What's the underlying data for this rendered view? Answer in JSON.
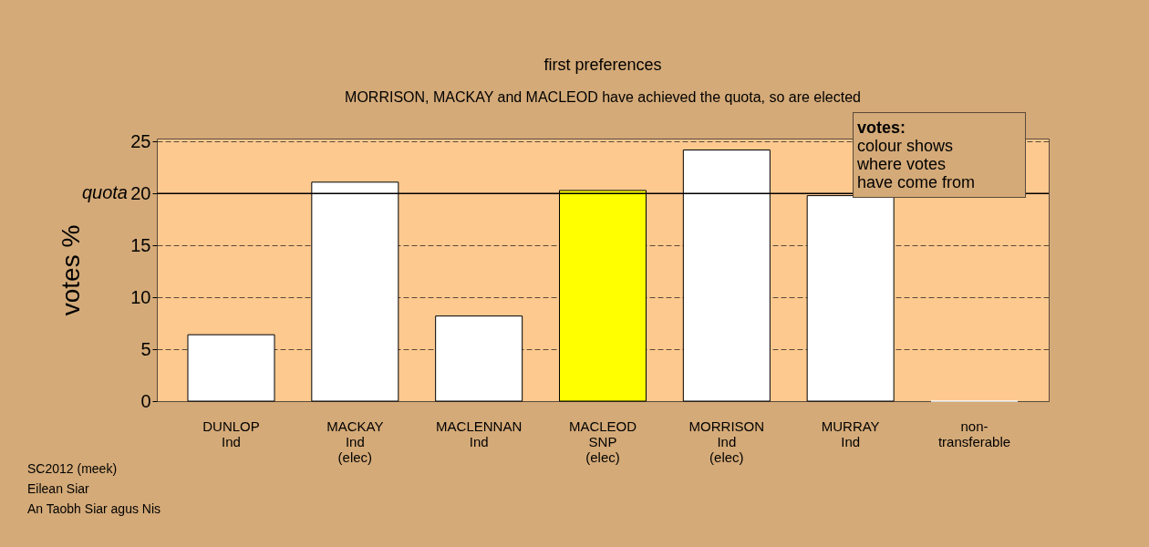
{
  "chart_data": {
    "type": "bar",
    "title": "first preferences",
    "subtitle": "MORRISON, MACKAY and MACLEOD have achieved the quota, so are elected",
    "ylabel": "votes %",
    "categories": [
      "DUNLOP\nInd",
      "MACKAY\nInd\n(elec)",
      "MACLENNAN\nInd",
      "MACLEOD\nSNP\n(elec)",
      "MORRISON\nInd\n(elec)",
      "MURRAY\nInd",
      "non-\ntransferable"
    ],
    "values": [
      6.4,
      21.1,
      8.2,
      20.3,
      24.2,
      19.8,
      0
    ],
    "colors": [
      "#ffffff",
      "#ffffff",
      "#ffffff",
      "#ffff00",
      "#ffffff",
      "#ffffff",
      "#ffffff"
    ],
    "ylim": [
      0,
      25.3
    ],
    "yticks": [
      0,
      5,
      10,
      15,
      20,
      25
    ],
    "grid": "y",
    "ref_lines": [
      {
        "axis": "y",
        "value": 20,
        "label": "quota"
      }
    ],
    "annotations": [
      "votes:\ncolour shows\nwhere votes\nhave come from",
      "SC2012 (meek)\nEilean Siar\nAn Taobh Siar agus Nis"
    ]
  }
}
